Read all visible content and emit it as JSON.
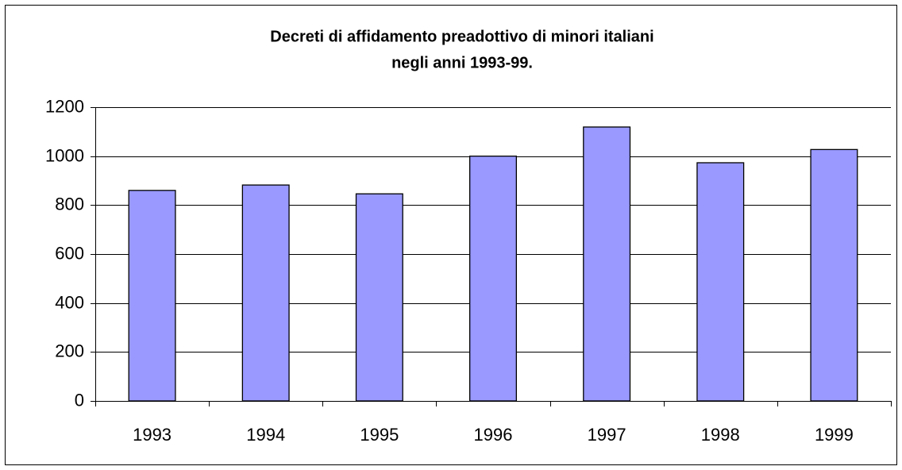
{
  "chart_data": {
    "type": "bar",
    "title": [
      "Decreti di affidamento preadottivo di minori italiani",
      "negli anni 1993-99."
    ],
    "categories": [
      "1993",
      "1994",
      "1995",
      "1996",
      "1997",
      "1998",
      "1999"
    ],
    "values": [
      860,
      882,
      846,
      1000,
      1119,
      973,
      1027
    ],
    "color": "#9999ff",
    "ylim": [
      0,
      1200
    ],
    "yticks": [
      0,
      200,
      400,
      600,
      800,
      1000,
      1200
    ],
    "grid": true
  }
}
